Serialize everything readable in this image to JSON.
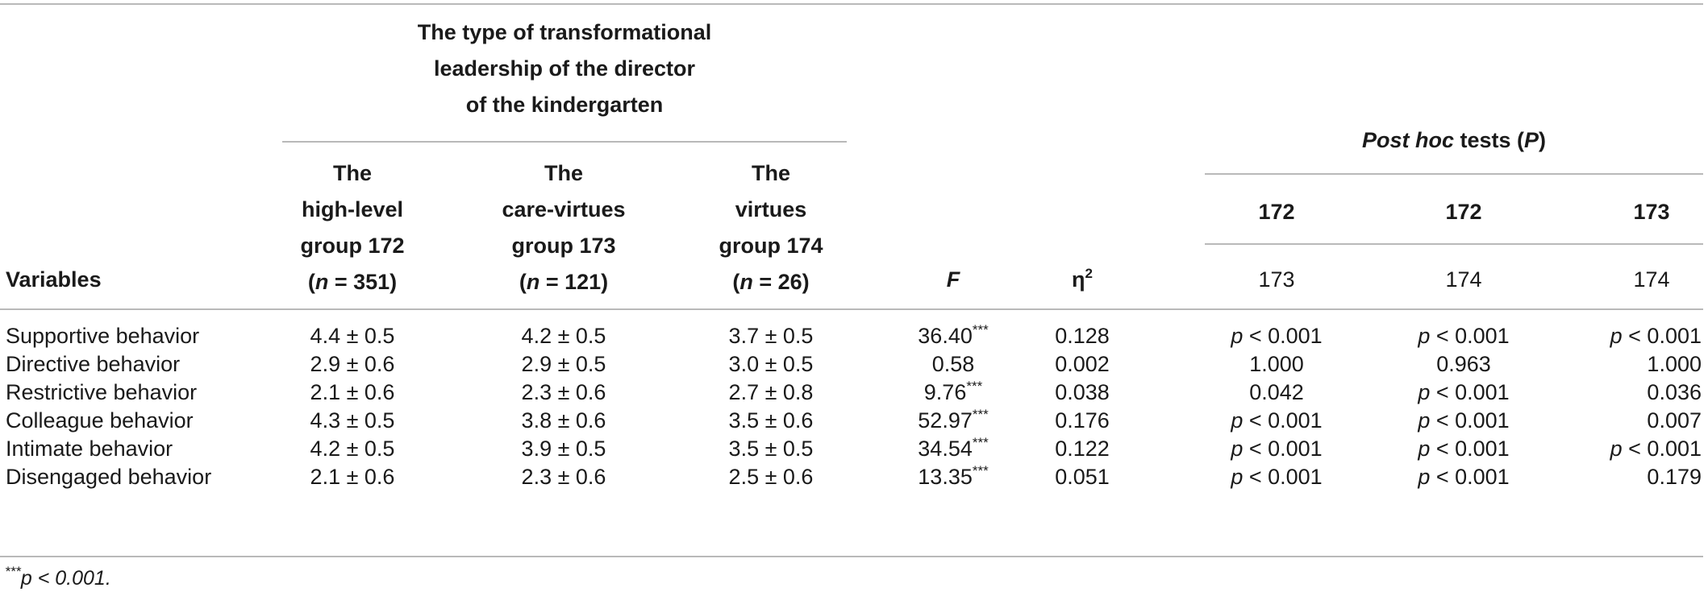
{
  "header": {
    "super_title": [
      "The type of transformational",
      "leadership of the director",
      "of the kindergarten"
    ],
    "variables_label": "Variables",
    "groups": [
      {
        "lines": [
          "The",
          "high-level",
          "group 172"
        ],
        "n_label": "n",
        "n_value": " = 351)"
      },
      {
        "lines": [
          "The",
          "care-virtues",
          "group 173"
        ],
        "n_label": "n",
        "n_value": " = 121)"
      },
      {
        "lines": [
          "The",
          "virtues",
          "group 174"
        ],
        "n_label": "n",
        "n_value": " = 26)"
      }
    ],
    "f_label": "F",
    "eta_label": "η",
    "eta_sup": "2",
    "posthoc_label_italic": "Post hoc",
    "posthoc_label_rest": " tests (",
    "posthoc_p": "P",
    "posthoc_close": ")",
    "posthoc_pairs": [
      {
        "top": "172",
        "bottom": "173"
      },
      {
        "top": "172",
        "bottom": "174"
      },
      {
        "top": "173",
        "bottom": "174"
      }
    ]
  },
  "rows": [
    {
      "variable": "Supportive behavior",
      "g1": "4.4 ± 0.5",
      "g2": "4.2 ± 0.5",
      "g3": "3.7 ± 0.5",
      "f": "36.40",
      "f_sig": "***",
      "eta": "0.128",
      "p1": "p < 0.001",
      "p2": "p < 0.001",
      "p3": "p < 0.001"
    },
    {
      "variable": "Directive behavior",
      "g1": "2.9 ± 0.6",
      "g2": "2.9 ± 0.5",
      "g3": "3.0 ± 0.5",
      "f": "0.58",
      "f_sig": "",
      "eta": "0.002",
      "p1": "1.000",
      "p2": "0.963",
      "p3": "1.000"
    },
    {
      "variable": "Restrictive behavior",
      "g1": "2.1 ± 0.6",
      "g2": "2.3 ± 0.6",
      "g3": "2.7 ± 0.8",
      "f": "9.76",
      "f_sig": "***",
      "eta": "0.038",
      "p1": "0.042",
      "p2": "p < 0.001",
      "p3": "0.036"
    },
    {
      "variable": "Colleague behavior",
      "g1": "4.3 ± 0.5",
      "g2": "3.8 ± 0.6",
      "g3": "3.5 ± 0.6",
      "f": "52.97",
      "f_sig": "***",
      "eta": "0.176",
      "p1": "p < 0.001",
      "p2": "p < 0.001",
      "p3": "0.007"
    },
    {
      "variable": "Intimate behavior",
      "g1": "4.2 ± 0.5",
      "g2": "3.9 ± 0.5",
      "g3": "3.5 ± 0.5",
      "f": "34.54",
      "f_sig": "***",
      "eta": "0.122",
      "p1": "p < 0.001",
      "p2": "p < 0.001",
      "p3": "p < 0.001"
    },
    {
      "variable": "Disengaged behavior",
      "g1": "2.1 ± 0.6",
      "g2": "2.3 ± 0.6",
      "g3": "2.5 ± 0.6",
      "f": "13.35",
      "f_sig": "***",
      "eta": "0.051",
      "p1": "p < 0.001",
      "p2": "p < 0.001",
      "p3": "0.179"
    }
  ],
  "footnote": {
    "stars": "***",
    "text": "p < 0.001."
  }
}
